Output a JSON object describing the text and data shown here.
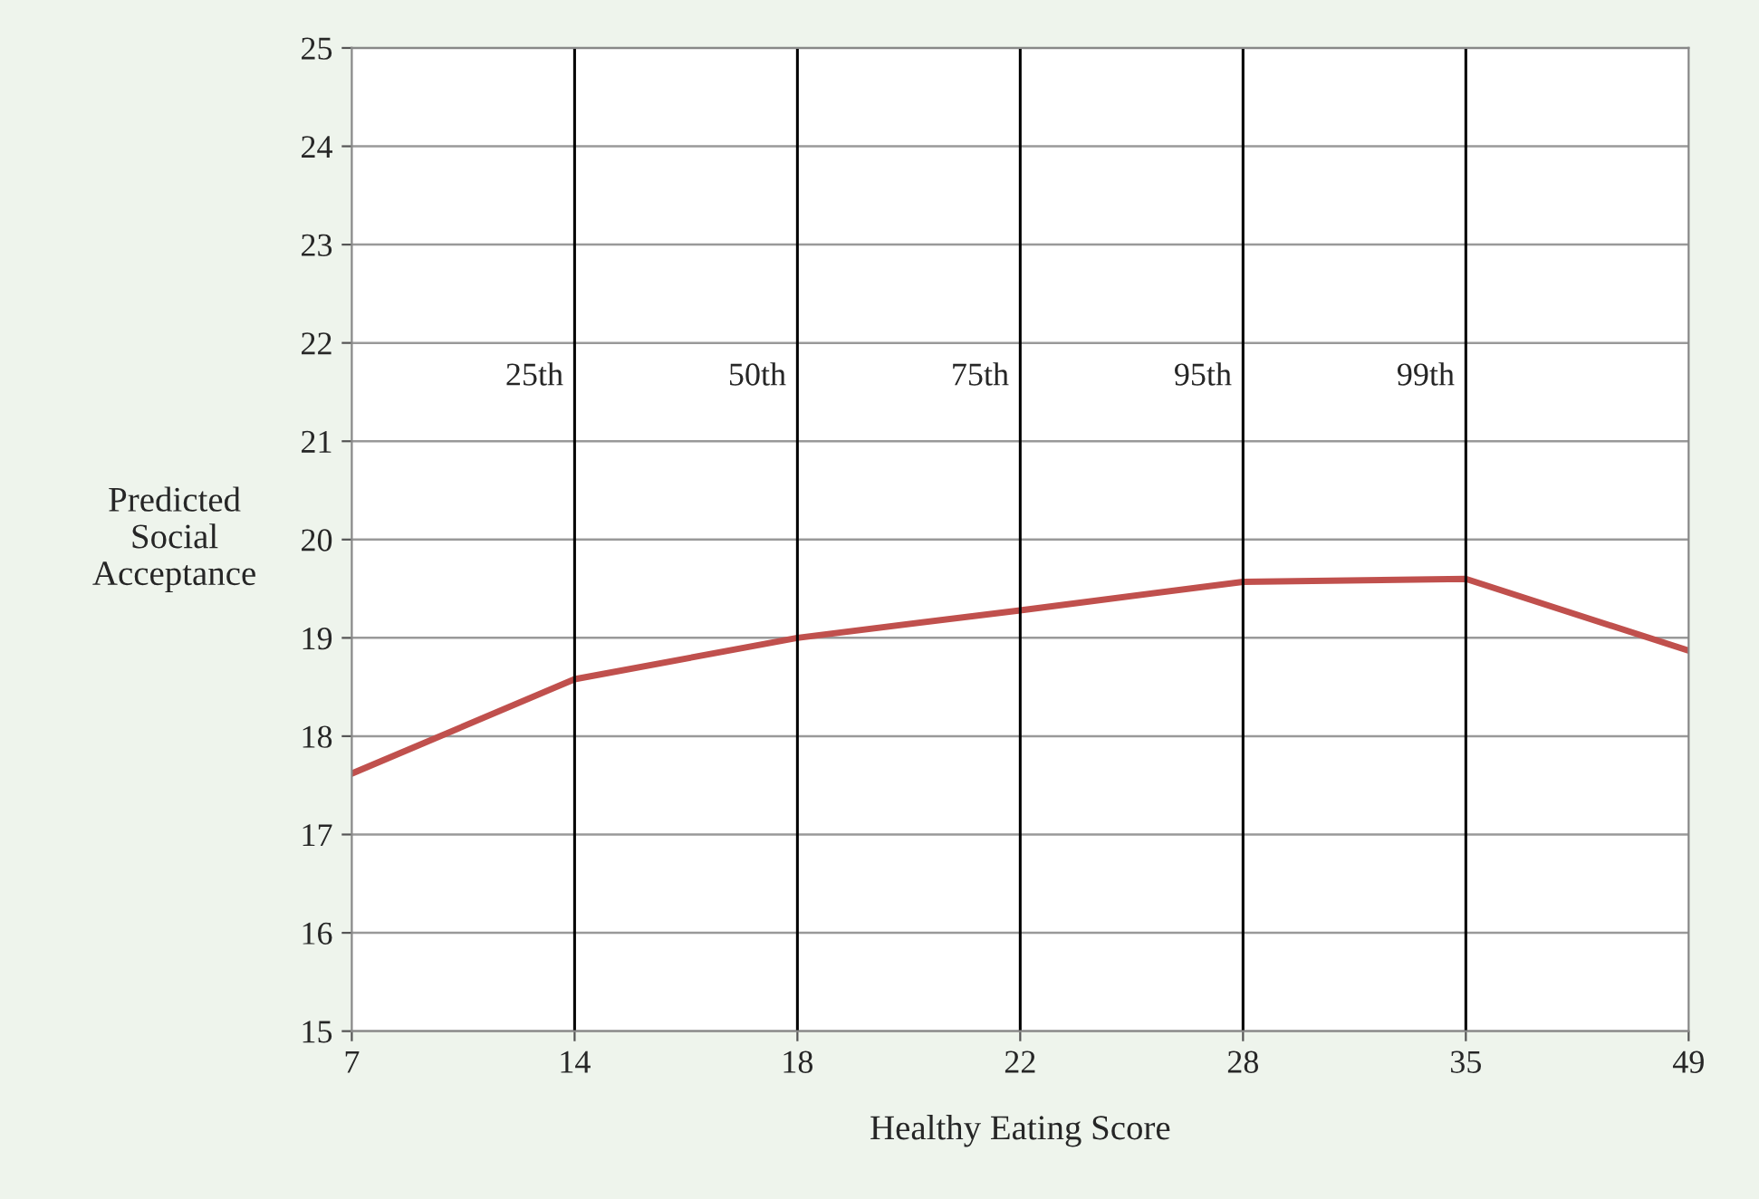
{
  "chart_data": {
    "type": "line",
    "xlabel": "Healthy Eating Score",
    "ylabel": "Predicted\nSocial\nAcceptance",
    "categories": [
      "7",
      "14",
      "18",
      "22",
      "28",
      "35",
      "49"
    ],
    "series": [
      {
        "color": "#c0504d",
        "values": [
          17.62,
          18.58,
          19.0,
          19.28,
          19.57,
          19.6,
          18.87
        ]
      }
    ],
    "ylim": [
      15,
      25
    ],
    "yticks": [
      15,
      16,
      17,
      18,
      19,
      20,
      21,
      22,
      23,
      24,
      25
    ],
    "grid": "y",
    "marker": "none",
    "line_style": "solid",
    "ref_lines": [
      {
        "axis": "x",
        "value": "14",
        "label": "25th",
        "color": "#000000"
      },
      {
        "axis": "x",
        "value": "18",
        "label": "50th",
        "color": "#000000"
      },
      {
        "axis": "x",
        "value": "22",
        "label": "75th",
        "color": "#000000"
      },
      {
        "axis": "x",
        "value": "28",
        "label": "95th",
        "color": "#000000"
      },
      {
        "axis": "x",
        "value": "35",
        "label": "99th",
        "color": "#000000"
      }
    ]
  }
}
